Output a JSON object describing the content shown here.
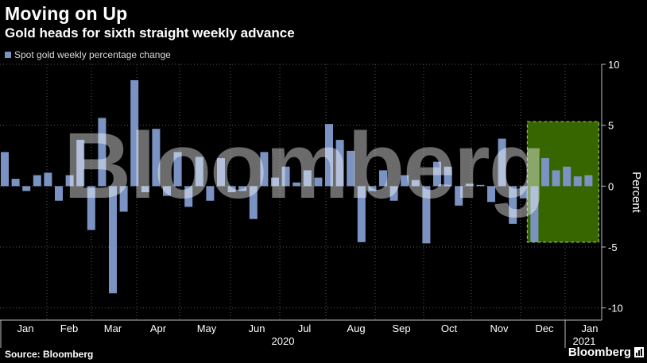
{
  "header": {
    "title": "Moving on Up",
    "subtitle": "Gold heads for sixth straight weekly advance"
  },
  "legend": {
    "label": "Spot gold weekly percentage change",
    "color": "#7b93c2"
  },
  "footer": {
    "source": "Source: Bloomberg",
    "brand": "Bloomberg"
  },
  "watermark": "Bloomberg",
  "colors": {
    "bar": "#7b93c2",
    "highlight_fill": "#3a6b00",
    "highlight_border": "#8cc63f",
    "grid": "#5a5a5a",
    "axis_text": "#ffffff"
  },
  "chart_data": {
    "type": "bar",
    "title": "Moving on Up",
    "subtitle": "Gold heads for sixth straight weekly advance",
    "ylabel": "Percent",
    "ylim": [
      -11,
      10
    ],
    "yticks": [
      10,
      5,
      0,
      -5,
      -10
    ],
    "y_axis_side": "right",
    "grid": true,
    "legend_position": "top-left",
    "month_labels": [
      "Jan",
      "Feb",
      "Mar",
      "Apr",
      "May",
      "Jun",
      "Jul",
      "Aug",
      "Sep",
      "Oct",
      "Nov",
      "Dec",
      "Jan"
    ],
    "year_labels": [
      "2020",
      "2021"
    ],
    "series": [
      {
        "name": "Spot gold weekly percentage change",
        "values": [
          2.8,
          0.6,
          -0.4,
          0.9,
          1.1,
          -1.2,
          0.9,
          3.8,
          -3.6,
          5.6,
          -8.8,
          -2.1,
          8.7,
          -0.5,
          4.7,
          -0.8,
          2.8,
          -1.7,
          2.4,
          -1.2,
          2.3,
          -0.5,
          -0.4,
          -2.7,
          2.8,
          0.7,
          1.6,
          0.3,
          1.3,
          0.7,
          5.1,
          3.8,
          2.9,
          -4.6,
          -0.4,
          1.3,
          -1.2,
          0.9,
          0.5,
          -4.7,
          2.0,
          1.6,
          -1.6,
          0.2,
          0.1,
          -1.3,
          3.9,
          -3.1,
          -1.0,
          -4.6,
          2.3,
          1.3,
          1.6,
          0.8,
          0.9
        ]
      }
    ],
    "highlight": {
      "from_index": 49,
      "to_index": 54,
      "ymin": -4.6,
      "ymax": 5.3
    }
  }
}
